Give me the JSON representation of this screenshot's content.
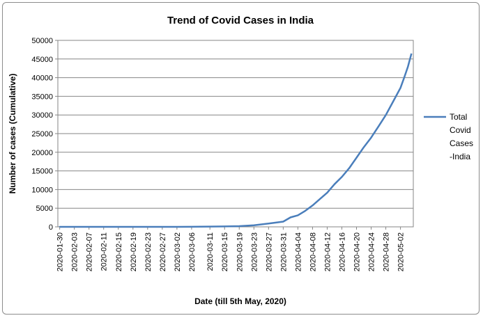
{
  "chart_data": {
    "type": "line",
    "title": "Trend of Covid Cases in India",
    "xlabel": "Date (till 5th May, 2020)",
    "ylabel": "Number of cases (Cumulative)",
    "ylim": [
      0,
      50000
    ],
    "yticks": [
      0,
      5000,
      10000,
      15000,
      20000,
      25000,
      30000,
      35000,
      40000,
      45000,
      50000
    ],
    "x_start": "2020-01-30",
    "x_end": "2020-05-05",
    "xticks": [
      "2020-01-30",
      "2020-02-03",
      "2020-02-07",
      "2020-02-11",
      "2020-02-15",
      "2020-02-19",
      "2020-02-23",
      "2020-02-27",
      "2020-03-02",
      "2020-03-06",
      "2020-03-11",
      "2020-03-15",
      "2020-03-19",
      "2020-03-23",
      "2020-03-27",
      "2020-03-31",
      "2020-04-04",
      "2020-04-08",
      "2020-04-12",
      "2020-04-16",
      "2020-04-20",
      "2020-04-24",
      "2020-04-28",
      "2020-05-02"
    ],
    "grid": "horizontal",
    "legend": "right",
    "color": "#4a7ebb",
    "series": [
      {
        "name": "Total Covid Cases -India",
        "legend_lines": [
          "Total",
          "Covid",
          "Cases",
          "-India"
        ],
        "x": [
          "2020-01-30",
          "2020-02-03",
          "2020-03-02",
          "2020-03-06",
          "2020-03-11",
          "2020-03-15",
          "2020-03-19",
          "2020-03-23",
          "2020-03-27",
          "2020-03-31",
          "2020-04-02",
          "2020-04-04",
          "2020-04-06",
          "2020-04-08",
          "2020-04-10",
          "2020-04-12",
          "2020-04-14",
          "2020-04-16",
          "2020-04-18",
          "2020-04-20",
          "2020-04-22",
          "2020-04-24",
          "2020-04-26",
          "2020-04-28",
          "2020-04-30",
          "2020-05-02",
          "2020-05-03",
          "2020-05-04",
          "2020-05-05"
        ],
        "values": [
          1,
          3,
          5,
          31,
          62,
          107,
          196,
          415,
          887,
          1397,
          2543,
          3082,
          4281,
          5734,
          7447,
          9152,
          11439,
          13387,
          15722,
          18539,
          21370,
          23932,
          26917,
          29974,
          33610,
          37262,
          39980,
          42836,
          46476
        ]
      }
    ]
  }
}
